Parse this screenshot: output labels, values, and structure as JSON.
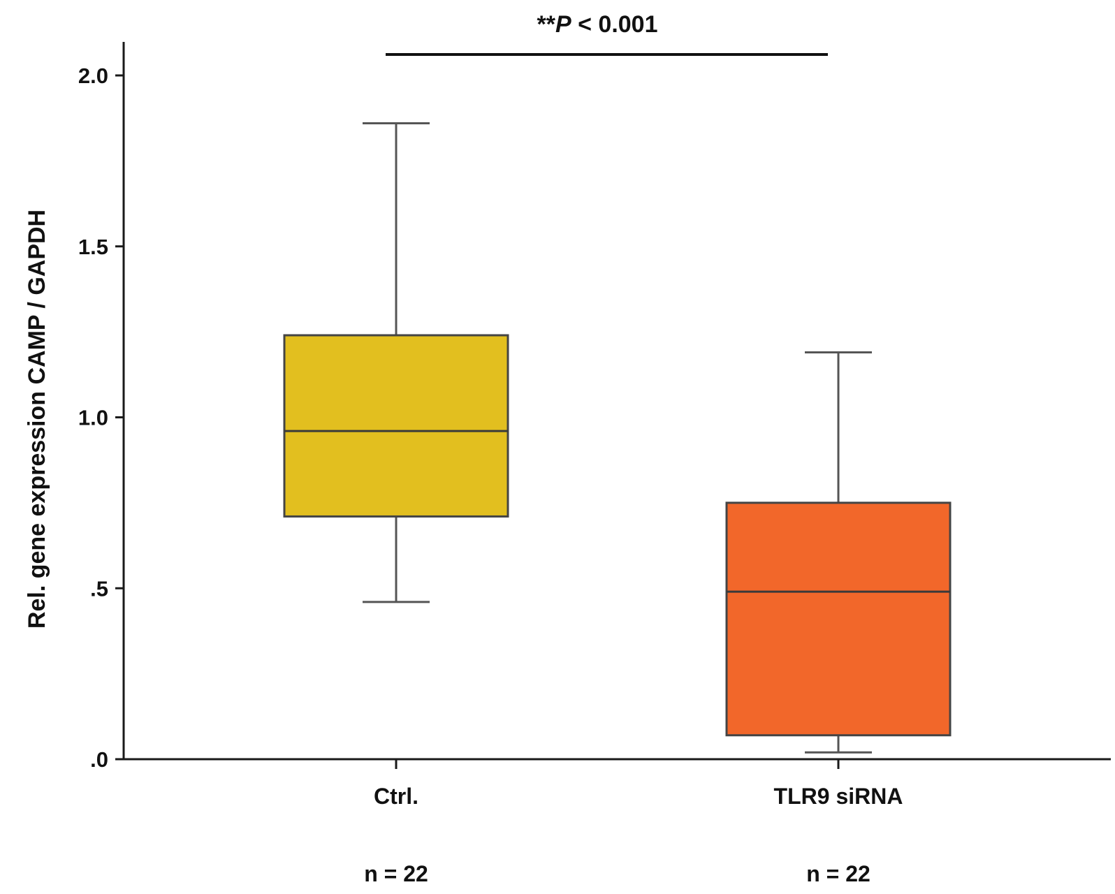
{
  "chart_data": {
    "type": "box",
    "ylabel": "Rel. gene expression CAMP / GAPDH",
    "ylim": [
      0,
      2.0
    ],
    "yticks": [
      {
        "value": 0.0,
        "label": ".0"
      },
      {
        "value": 0.5,
        "label": ".5"
      },
      {
        "value": 1.0,
        "label": "1.0"
      },
      {
        "value": 1.5,
        "label": "1.5"
      },
      {
        "value": 2.0,
        "label": "2.0"
      }
    ],
    "categories": [
      "Ctrl.",
      "TLR9 siRNA"
    ],
    "sample_sizes": [
      "n = 22",
      "n = 22"
    ],
    "boxes": [
      {
        "category": "Ctrl.",
        "min": 0.46,
        "q1": 0.71,
        "median": 0.96,
        "q3": 1.24,
        "max": 1.86,
        "color": "#E2BF1F"
      },
      {
        "category": "TLR9 siRNA",
        "min": 0.02,
        "q1": 0.07,
        "median": 0.49,
        "q3": 0.75,
        "max": 1.19,
        "color": "#F2672A"
      }
    ],
    "significance": {
      "stars": "**",
      "italic": "P",
      "rest": " < 0.001"
    },
    "grid": false
  }
}
